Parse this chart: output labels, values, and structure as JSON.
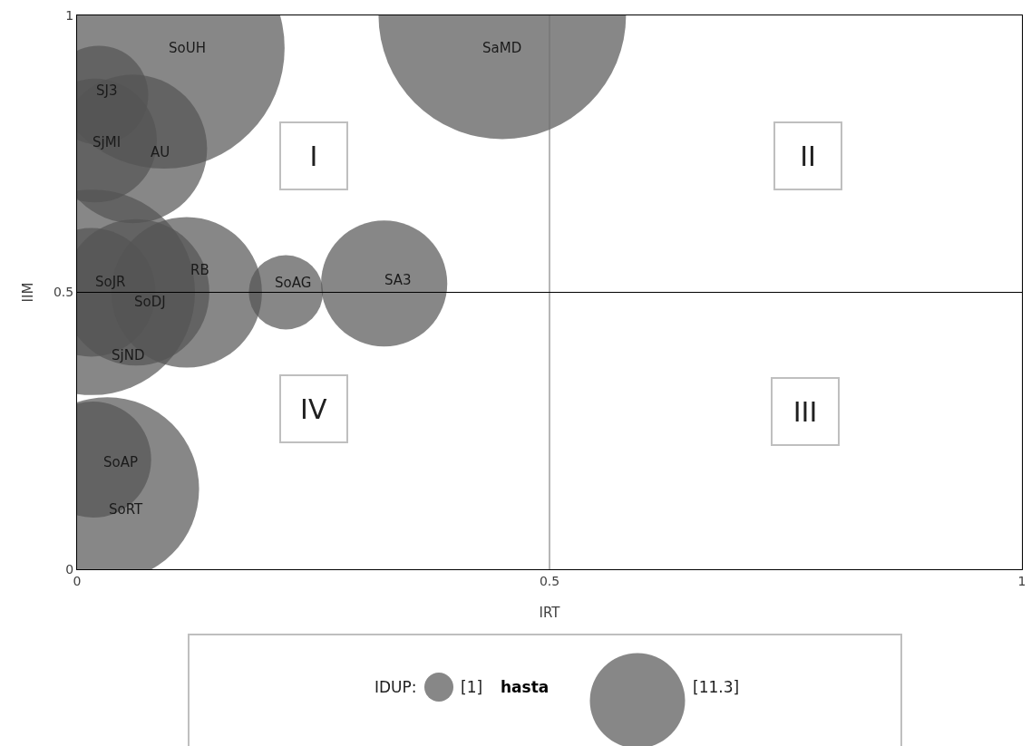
{
  "chart_data": {
    "type": "bubble",
    "xlabel": "IRT",
    "ylabel": "IIM",
    "legend_title": "IDUP:",
    "xlim": [
      0,
      1
    ],
    "ylim": [
      0,
      1
    ],
    "xticks": [
      0,
      0.5,
      1
    ],
    "yticks": [
      0,
      0.5,
      1
    ],
    "ref_lines": [
      {
        "axis": "x",
        "value": 0.5,
        "color": "#6e6e6e"
      },
      {
        "axis": "y",
        "value": 0.5,
        "color": "#000000"
      }
    ],
    "series": [
      {
        "name": "SoUH",
        "color": "#878787",
        "x": [
          0.092
        ],
        "values": [
          0.941
        ],
        "sizes": [
          0.95
        ]
      },
      {
        "name": "SaMD",
        "color": "#878787",
        "x": [
          0.45
        ],
        "values": [
          1.0
        ],
        "sizes": [
          1
        ]
      },
      {
        "name": "SJ3",
        "color": "#878787",
        "x": [
          0.023
        ],
        "values": [
          0.856
        ],
        "sizes": [
          0.16
        ]
      },
      {
        "name": "SjMI",
        "color": "#878787",
        "x": [
          0.019
        ],
        "values": [
          0.774
        ],
        "sizes": [
          0.25
        ]
      },
      {
        "name": "AU",
        "color": "#878787",
        "x": [
          0.059
        ],
        "values": [
          0.759
        ],
        "sizes": [
          0.36
        ]
      },
      {
        "name": "SjND",
        "color": "#878787",
        "x": [
          0.016
        ],
        "values": [
          0.5
        ],
        "sizes": [
          0.69
        ]
      },
      {
        "name": "SoJR",
        "color": "#878787",
        "x": [
          0.015
        ],
        "values": [
          0.5
        ],
        "sizes": [
          0.27
        ]
      },
      {
        "name": "SoDJ",
        "color": "#878787",
        "x": [
          0.0625
        ],
        "values": [
          0.5
        ],
        "sizes": [
          0.35
        ]
      },
      {
        "name": "RB",
        "color": "#878787",
        "x": [
          0.116
        ],
        "values": [
          0.5
        ],
        "sizes": [
          0.37
        ]
      },
      {
        "name": "SoAG",
        "color": "#878787",
        "x": [
          0.221
        ],
        "values": [
          0.5
        ],
        "sizes": [
          0.09
        ]
      },
      {
        "name": "SA3",
        "color": "#878787",
        "x": [
          0.325
        ],
        "values": [
          0.516
        ],
        "sizes": [
          0.26
        ]
      },
      {
        "name": "SoAP",
        "color": "#878787",
        "x": [
          0.017
        ],
        "values": [
          0.198
        ],
        "sizes": [
          0.22
        ]
      },
      {
        "name": "SoRT",
        "color": "#878787",
        "x": [
          0.032
        ],
        "values": [
          0.145
        ],
        "sizes": [
          0.55
        ]
      }
    ],
    "annotations": [
      "I",
      "II",
      "III",
      "IV",
      "hasta",
      "[1]",
      "[11.3]"
    ]
  }
}
